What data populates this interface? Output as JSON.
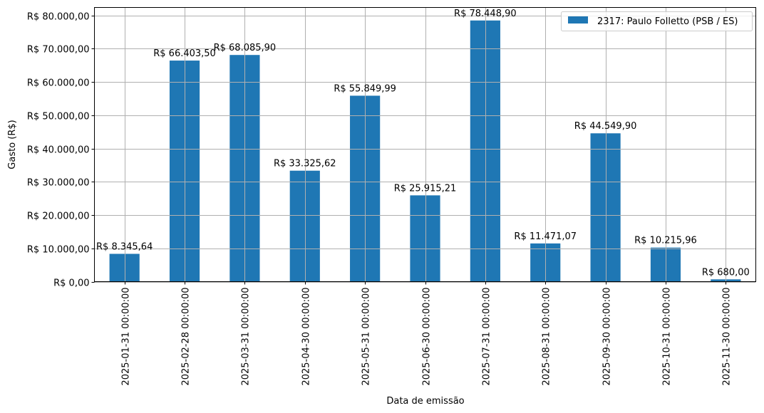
{
  "chart_data": {
    "type": "bar",
    "title": "",
    "xlabel": "Data de emissão",
    "ylabel": "Gasto (R$)",
    "ylim": [
      0,
      82354
    ],
    "yticks": [
      0,
      10000,
      20000,
      30000,
      40000,
      50000,
      60000,
      70000,
      80000
    ],
    "ytick_labels": [
      "R$ 0,00",
      "R$ 10.000,00",
      "R$ 20.000,00",
      "R$ 30.000,00",
      "R$ 40.000,00",
      "R$ 50.000,00",
      "R$ 60.000,00",
      "R$ 70.000,00",
      "R$ 80.000,00"
    ],
    "grid": true,
    "legend_position": "upper right",
    "categories": [
      "2025-01-31 00:00:00",
      "2025-02-28 00:00:00",
      "2025-03-31 00:00:00",
      "2025-04-30 00:00:00",
      "2025-05-31 00:00:00",
      "2025-06-30 00:00:00",
      "2025-07-31 00:00:00",
      "2025-08-31 00:00:00",
      "2025-09-30 00:00:00",
      "2025-10-31 00:00:00",
      "2025-11-30 00:00:00"
    ],
    "series": [
      {
        "name": "2317: Paulo Folletto (PSB / ES)",
        "color": "#1f77b4",
        "values": [
          8345.64,
          66403.5,
          68085.9,
          33325.62,
          55849.99,
          25915.21,
          78448.9,
          11471.07,
          44549.9,
          10215.96,
          680.0
        ],
        "labels": [
          "R$ 8.345,64",
          "R$ 66.403,50",
          "R$ 68.085,90",
          "R$ 33.325,62",
          "R$ 55.849,99",
          "R$ 25.915,21",
          "R$ 78.448,90",
          "R$ 11.471,07",
          "R$ 44.549,90",
          "R$ 10.215,96",
          "R$ 680,00"
        ]
      }
    ]
  }
}
